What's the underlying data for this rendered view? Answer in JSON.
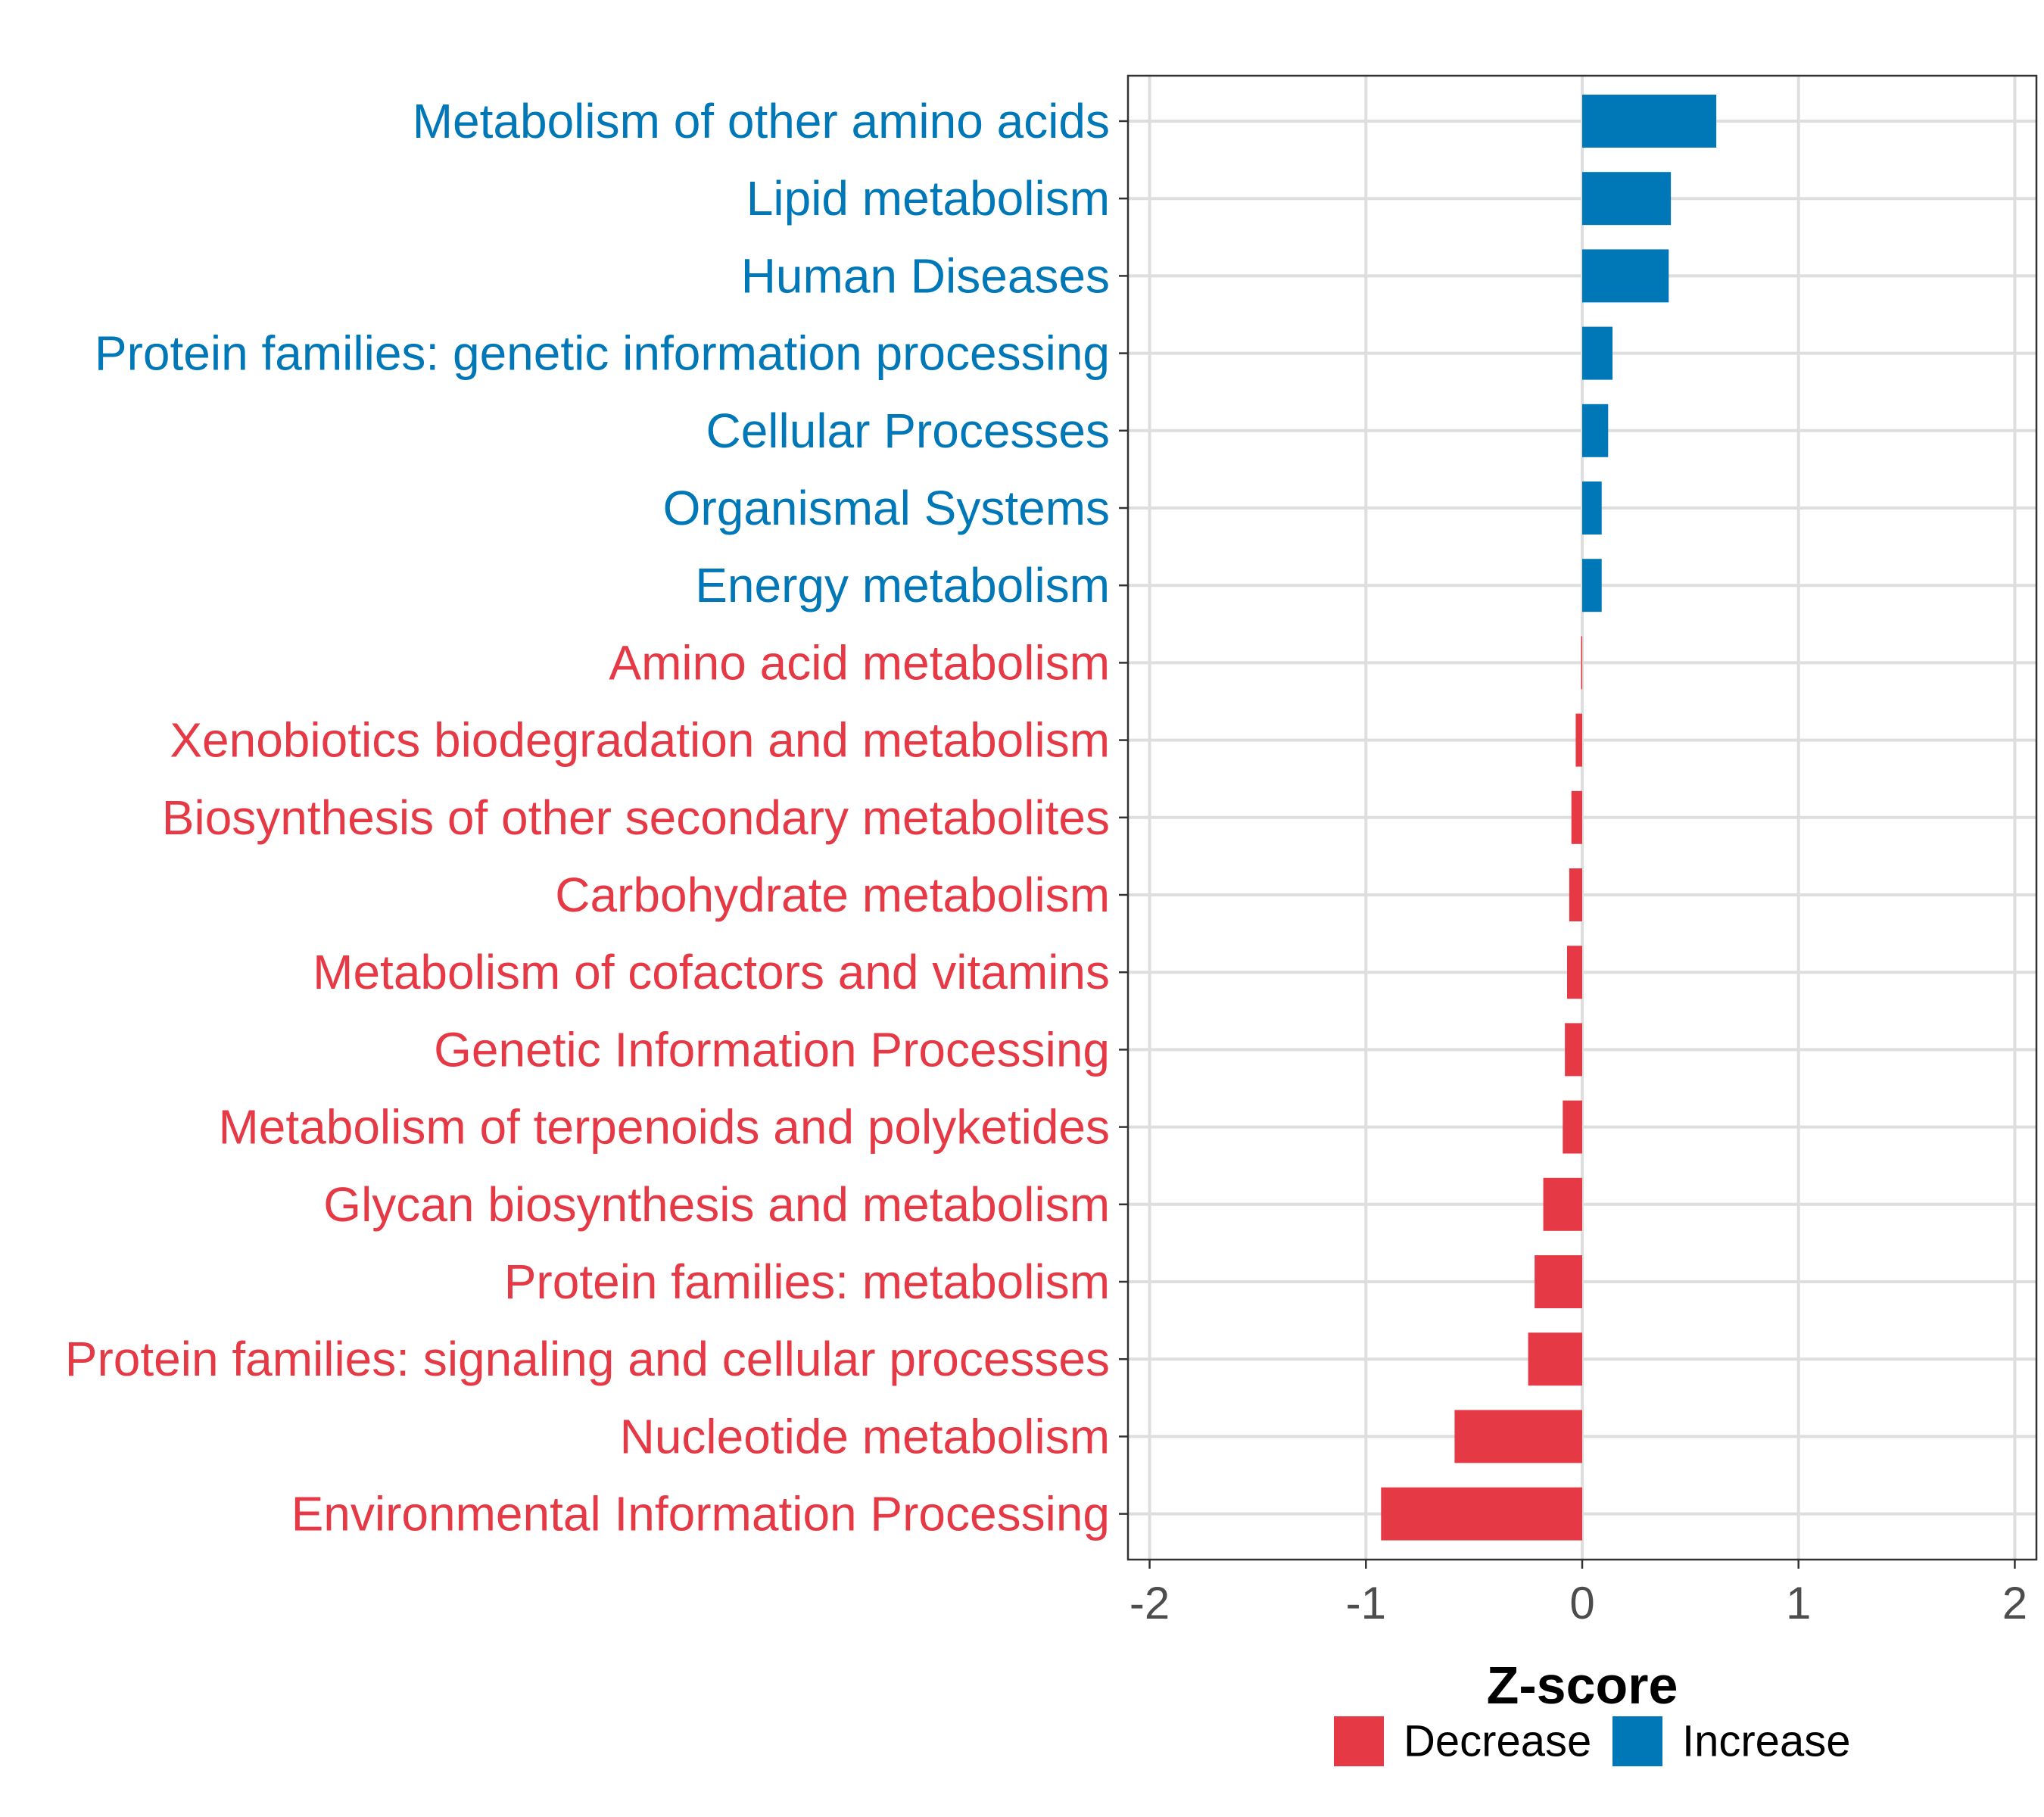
{
  "chart_data": {
    "type": "bar",
    "orientation": "horizontal",
    "xlabel": "Z-score",
    "ylabel": "",
    "xlim": [
      -2.1,
      2.1
    ],
    "x_ticks": [
      -2,
      -1,
      0,
      1,
      2
    ],
    "x_tick_labels": [
      "-2",
      "-1",
      "0",
      "1",
      "2"
    ],
    "grid": true,
    "colors": {
      "Decrease": "#E63946",
      "Increase": "#0077B6"
    },
    "legend": {
      "placement": "bottom",
      "entries": [
        {
          "label": "Decrease",
          "color": "#E63946"
        },
        {
          "label": "Increase",
          "color": "#0077B6"
        }
      ]
    },
    "categories": [
      "Metabolism of other amino acids",
      "Lipid metabolism",
      "Human Diseases",
      "Protein families: genetic information processing",
      "Cellular Processes",
      "Organismal Systems",
      "Energy metabolism",
      "Amino acid metabolism",
      "Xenobiotics biodegradation and metabolism",
      "Biosynthesis of other secondary metabolites",
      "Carbohydrate metabolism",
      "Metabolism of cofactors and vitamins",
      "Genetic Information Processing",
      "Metabolism of terpenoids and polyketides",
      "Glycan biosynthesis and metabolism",
      "Protein families: metabolism",
      "Protein families: signaling and cellular processes",
      "Nucleotide metabolism",
      "Environmental Information Processing"
    ],
    "values": [
      0.62,
      0.41,
      0.4,
      0.14,
      0.12,
      0.09,
      0.09,
      -0.005,
      -0.03,
      -0.05,
      -0.06,
      -0.07,
      -0.08,
      -0.09,
      -0.18,
      -0.22,
      -0.25,
      -0.59,
      -0.93
    ],
    "groups": [
      "Increase",
      "Increase",
      "Increase",
      "Increase",
      "Increase",
      "Increase",
      "Increase",
      "Decrease",
      "Decrease",
      "Decrease",
      "Decrease",
      "Decrease",
      "Decrease",
      "Decrease",
      "Decrease",
      "Decrease",
      "Decrease",
      "Decrease",
      "Decrease"
    ]
  }
}
